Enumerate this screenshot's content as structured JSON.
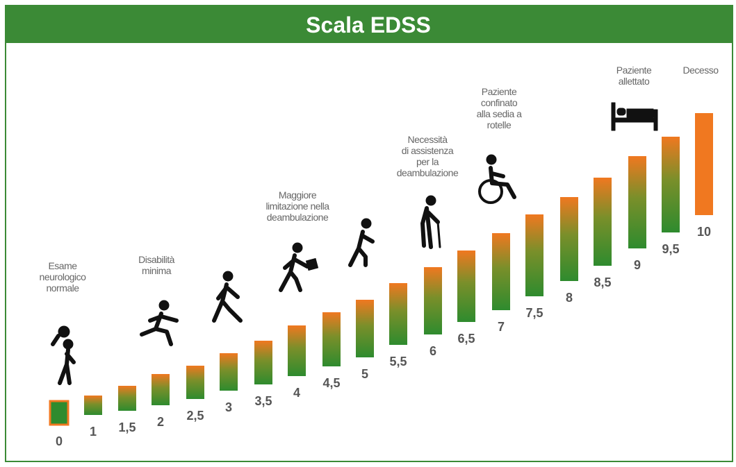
{
  "title": "Scala EDSS",
  "steps": [
    "0",
    "1",
    "1,5",
    "2",
    "2,5",
    "3",
    "3,5",
    "4",
    "4,5",
    "5",
    "5,5",
    "6",
    "6,5",
    "7",
    "7,5",
    "8",
    "8,5",
    "9",
    "9,5",
    "10"
  ],
  "captions": [
    {
      "lines": [
        "Esame",
        "neurologico",
        "normale"
      ]
    },
    {
      "lines": [
        "Disabilità",
        "minima"
      ]
    },
    {
      "lines": [
        "Maggiore",
        "limitazione nella",
        "deambulazione"
      ]
    },
    {
      "lines": [
        "Necessità",
        "di assistenza",
        "per la",
        "deambulazione"
      ]
    },
    {
      "lines": [
        "Paziente",
        "confinato",
        "alla sedia a",
        "rotelle"
      ]
    },
    {
      "lines": [
        "Paziente",
        "allettato"
      ]
    },
    {
      "lines": [
        "Decesso"
      ]
    }
  ]
}
